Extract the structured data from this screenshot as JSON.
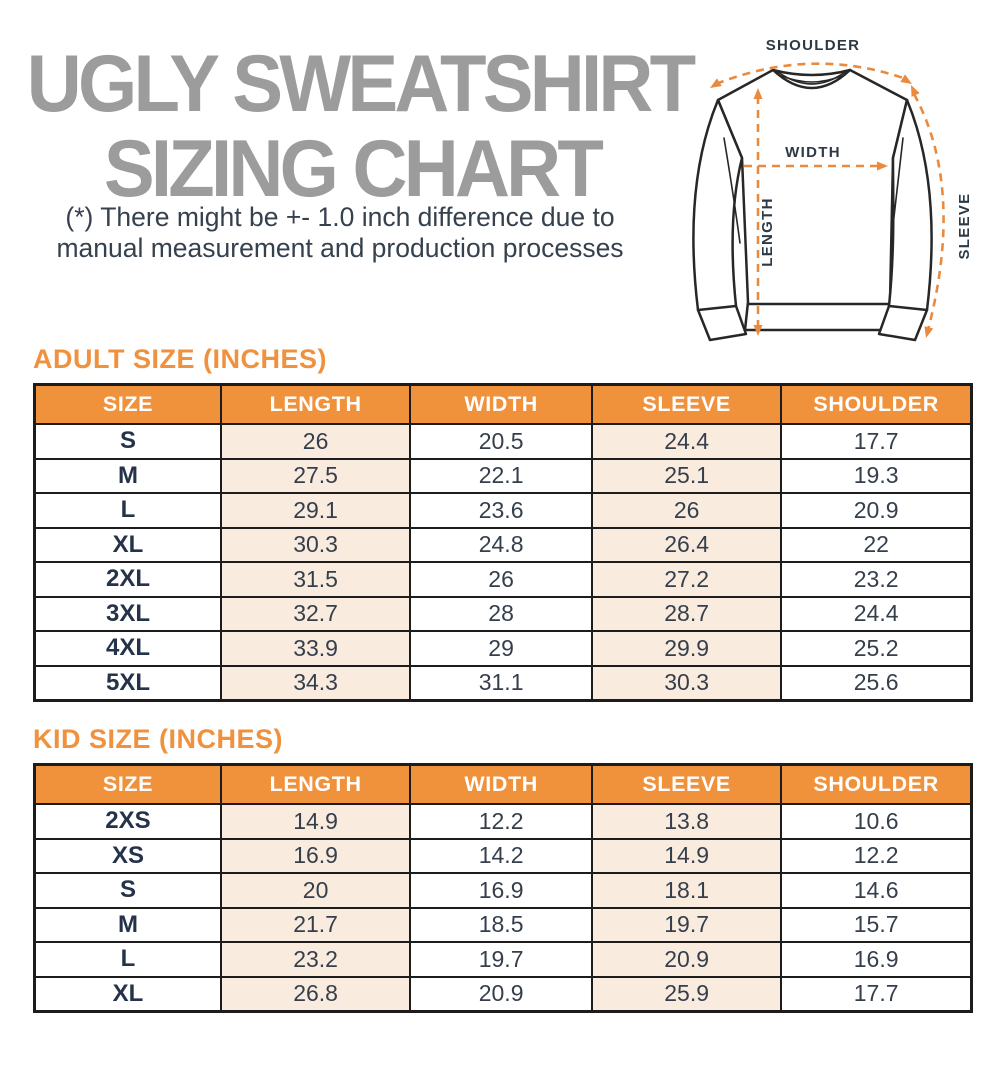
{
  "header": {
    "title_line1": "UGLY SWEATSHIRT",
    "title_line2": "SIZING CHART",
    "disclaimer_line1": "(*) There might be +- 1.0 inch difference due to",
    "disclaimer_line2": "manual measurement and production processes"
  },
  "diagram": {
    "labels": {
      "shoulder": "SHOULDER",
      "width": "WIDTH",
      "length": "LENGTH",
      "sleeve": "SLEEVE"
    }
  },
  "adult_table": {
    "heading": "ADULT SIZE (INCHES)",
    "columns": [
      "SIZE",
      "LENGTH",
      "WIDTH",
      "SLEEVE",
      "SHOULDER"
    ],
    "rows": [
      [
        "S",
        "26",
        "20.5",
        "24.4",
        "17.7"
      ],
      [
        "M",
        "27.5",
        "22.1",
        "25.1",
        "19.3"
      ],
      [
        "L",
        "29.1",
        "23.6",
        "26",
        "20.9"
      ],
      [
        "XL",
        "30.3",
        "24.8",
        "26.4",
        "22"
      ],
      [
        "2XL",
        "31.5",
        "26",
        "27.2",
        "23.2"
      ],
      [
        "3XL",
        "32.7",
        "28",
        "28.7",
        "24.4"
      ],
      [
        "4XL",
        "33.9",
        "29",
        "29.9",
        "25.2"
      ],
      [
        "5XL",
        "34.3",
        "31.1",
        "30.3",
        "25.6"
      ]
    ]
  },
  "kid_table": {
    "heading": "KID SIZE (INCHES)",
    "columns": [
      "SIZE",
      "LENGTH",
      "WIDTH",
      "SLEEVE",
      "SHOULDER"
    ],
    "rows": [
      [
        "2XS",
        "14.9",
        "12.2",
        "13.8",
        "10.6"
      ],
      [
        "XS",
        "16.9",
        "14.2",
        "14.9",
        "12.2"
      ],
      [
        "S",
        "20",
        "16.9",
        "18.1",
        "14.6"
      ],
      [
        "M",
        "21.7",
        "18.5",
        "19.7",
        "15.7"
      ],
      [
        "L",
        "23.2",
        "19.7",
        "20.9",
        "16.9"
      ],
      [
        "XL",
        "26.8",
        "20.9",
        "25.9",
        "17.7"
      ]
    ]
  },
  "colors": {
    "accent_orange": "#f0913c",
    "arrow_orange": "#e98a3e",
    "peach_cell": "#faebdf",
    "title_gray": "#9c9c9c",
    "text_dark": "#353f4c",
    "table_border": "#1c1c1c"
  }
}
